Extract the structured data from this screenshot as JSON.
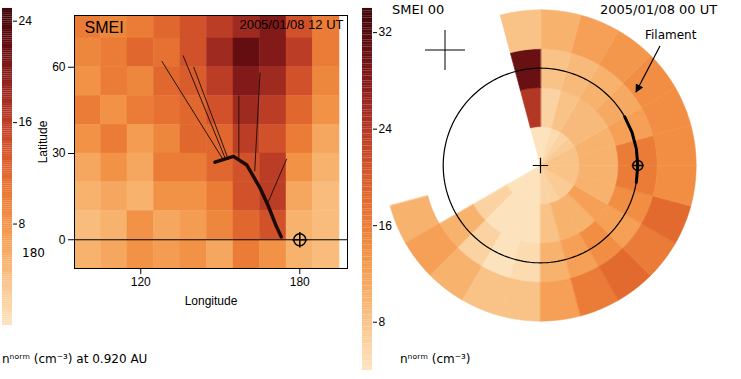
{
  "chart_data": [
    {
      "type": "heatmap",
      "title": "SMEI",
      "subtitle": "2005/01/08 12 UT",
      "xlabel": "Longitude",
      "ylabel": "Latitude",
      "caption": "nⁿᵒʳᵐ (cm⁻³) at 0.920 AU",
      "annotation": "180",
      "x": [
        100,
        110,
        120,
        130,
        140,
        150,
        160,
        170,
        180,
        190
      ],
      "y": [
        75,
        65,
        55,
        45,
        35,
        25,
        15,
        5,
        -5
      ],
      "cells": [
        [
          10,
          9,
          10,
          12,
          14,
          16,
          18,
          20,
          14,
          10
        ],
        [
          9,
          10,
          12,
          11,
          14,
          18,
          22,
          20,
          16,
          10
        ],
        [
          8,
          10,
          9,
          12,
          13,
          16,
          20,
          18,
          14,
          9
        ],
        [
          10,
          8,
          10,
          11,
          12,
          14,
          18,
          16,
          12,
          8
        ],
        [
          8,
          10,
          7,
          9,
          12,
          12,
          16,
          14,
          10,
          6
        ],
        [
          6,
          8,
          6,
          10,
          10,
          12,
          14,
          16,
          8,
          5
        ],
        [
          5,
          6,
          5,
          8,
          8,
          10,
          14,
          16,
          6,
          4
        ],
        [
          4,
          5,
          8,
          6,
          7,
          9,
          12,
          14,
          5,
          4
        ],
        [
          5,
          6,
          8,
          7,
          8,
          6,
          10,
          8,
          5,
          4
        ]
      ],
      "xlim": [
        95,
        198
      ],
      "xticks": [
        120,
        180
      ],
      "ylim": [
        -10,
        78
      ],
      "yticks": [
        0,
        30,
        60
      ],
      "colorbar": {
        "lim": [
          0,
          25
        ],
        "ticks": [
          8,
          16,
          24
        ]
      },
      "hline": 0,
      "earth": {
        "x": 180,
        "y": 0
      },
      "filament": {
        "x": [
          148,
          155,
          160,
          165,
          168,
          171,
          173
        ],
        "y": [
          27,
          29,
          26,
          18,
          12,
          5,
          1
        ]
      },
      "rays": [
        {
          "x": [
            151,
            128
          ],
          "y": [
            28,
            62
          ]
        },
        {
          "x": [
            152,
            136
          ],
          "y": [
            28,
            64
          ]
        },
        {
          "x": [
            153,
            140
          ],
          "y": [
            28,
            60
          ]
        },
        {
          "x": [
            157,
            157
          ],
          "y": [
            28,
            50
          ]
        },
        {
          "x": [
            163,
            165
          ],
          "y": [
            24,
            58
          ]
        },
        {
          "x": [
            168,
            175
          ],
          "y": [
            13,
            28
          ]
        }
      ]
    },
    {
      "type": "polar_map",
      "title": "SMEI 00",
      "subtitle": "2005/01/08 00 UT",
      "caption": "nⁿᵒʳᵐ (cm⁻³)",
      "annotation": "Filament",
      "tick_labels": false,
      "angle_bins": [
        0,
        15,
        30,
        45,
        60,
        75,
        90,
        105,
        120,
        135,
        150,
        165,
        180,
        195,
        210,
        225,
        240,
        255,
        270,
        285,
        300,
        315,
        330,
        345,
        360
      ],
      "radius_bins": [
        0,
        0.4,
        0.8,
        1.2,
        1.6
      ],
      "cells": [
        [
          8,
          10,
          16,
          14
        ],
        [
          8,
          10,
          12,
          14
        ],
        [
          7,
          9,
          11,
          14
        ],
        [
          6,
          9,
          10,
          13
        ],
        [
          5,
          8,
          9,
          12
        ],
        [
          4,
          6,
          8,
          10
        ],
        [
          4,
          24,
          30,
          8
        ],
        [
          null,
          null,
          null,
          null
        ],
        [
          null,
          null,
          null,
          null
        ],
        [
          null,
          null,
          null,
          null
        ],
        [
          null,
          null,
          null,
          null
        ],
        [
          null,
          null,
          null,
          null
        ],
        [
          null,
          null,
          null,
          null
        ],
        [
          null,
          null,
          null,
          10
        ],
        [
          4,
          6,
          10,
          12
        ],
        [
          3,
          4,
          6,
          10
        ],
        [
          3,
          3,
          4,
          8
        ],
        [
          4,
          4,
          5,
          8
        ],
        [
          6,
          8,
          10,
          12
        ],
        [
          6,
          10,
          12,
          16
        ],
        [
          7,
          10,
          14,
          18
        ],
        [
          7,
          12,
          12,
          16
        ],
        [
          8,
          10,
          14,
          18
        ],
        [
          8,
          10,
          16,
          14
        ]
      ],
      "colorbar": {
        "lim": [
          4,
          34
        ],
        "ticks": [
          8,
          16,
          24,
          32
        ]
      },
      "orbit_radius": 1,
      "earth": {
        "angle": 0,
        "r": 1
      },
      "filament": {
        "angle": [
          -10,
          0,
          10,
          20,
          30
        ],
        "r": [
          1,
          1,
          1,
          1,
          1
        ]
      }
    }
  ]
}
